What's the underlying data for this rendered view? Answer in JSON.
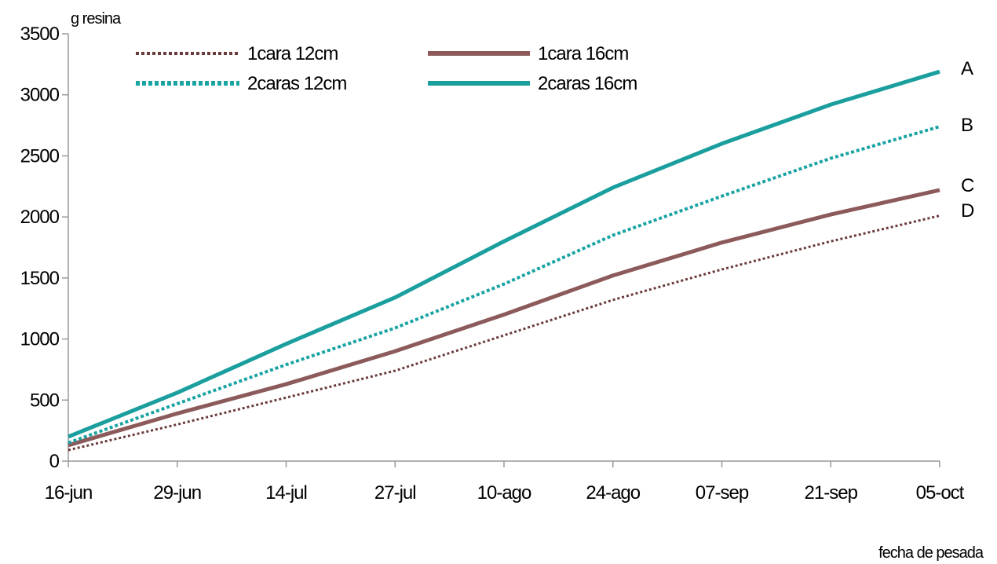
{
  "chart_data": {
    "type": "line",
    "ylabel": "g resina",
    "xlabel": "fecha de pesada",
    "categories": [
      "16-jun",
      "29-jun",
      "14-jul",
      "27-jul",
      "10-ago",
      "24-ago",
      "07-sep",
      "21-sep",
      "05-oct"
    ],
    "ylim": [
      0,
      3500
    ],
    "yticks": [
      0,
      500,
      1000,
      1500,
      2000,
      2500,
      3000,
      3500
    ],
    "grid": false,
    "legend": "top",
    "series": [
      {
        "name": "1cara 12cm",
        "end_label": "D",
        "color": "#6b3a3a",
        "style": "dotted",
        "values": [
          90,
          300,
          520,
          740,
          1030,
          1320,
          1570,
          1800,
          2010
        ]
      },
      {
        "name": "1cara 16cm",
        "end_label": "C",
        "color": "#8c5a5a",
        "style": "solid",
        "values": [
          130,
          390,
          630,
          900,
          1200,
          1520,
          1790,
          2020,
          2220
        ]
      },
      {
        "name": "2caras 12cm",
        "end_label": "B",
        "color": "#1aa3a3",
        "style": "dotted",
        "values": [
          150,
          470,
          790,
          1090,
          1450,
          1850,
          2170,
          2480,
          2740
        ]
      },
      {
        "name": "2caras 16cm",
        "end_label": "A",
        "color": "#1a9e9e",
        "style": "solid",
        "values": [
          200,
          560,
          960,
          1340,
          1800,
          2240,
          2600,
          2920,
          3190
        ]
      }
    ]
  }
}
